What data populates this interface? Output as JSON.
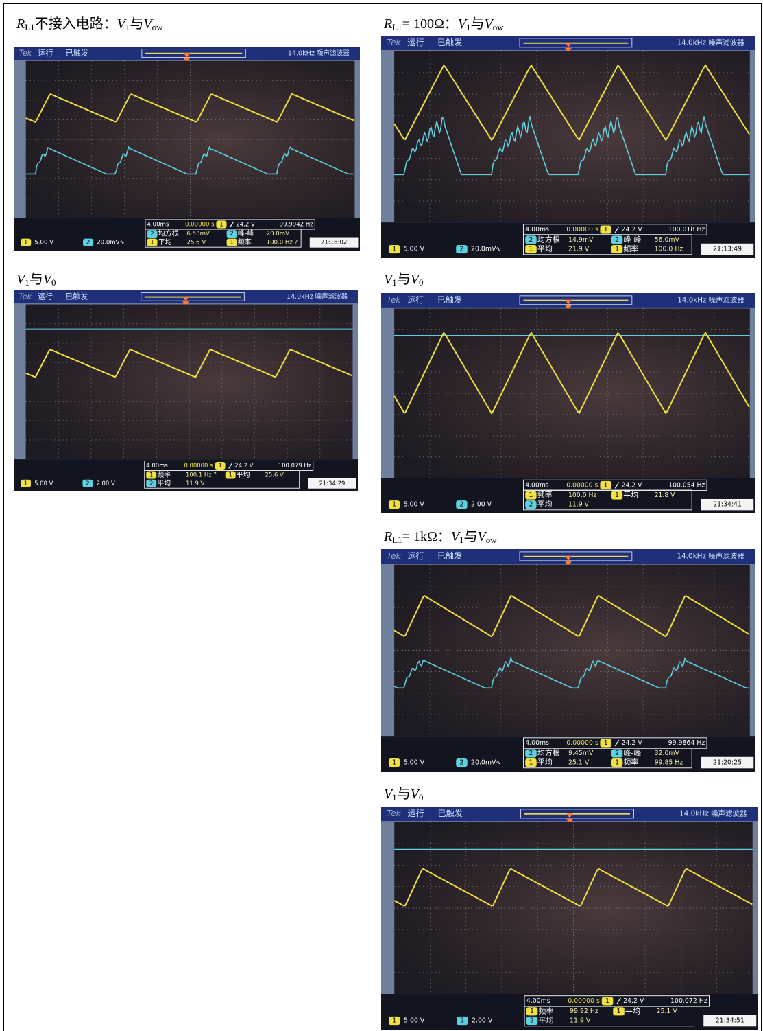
{
  "table": {
    "cells": [
      {
        "caption": [
          "R",
          "L1",
          "不接入电路：",
          "V",
          "1",
          "与",
          "V",
          "ow"
        ],
        "scope": {
          "brand": "Tek",
          "status": "运行",
          "trigger_state": "已触发",
          "filter": "14.0kHz 噪声滤波器",
          "timebase": "4.00ms",
          "delay": "0.00000 s",
          "trigger_ch": 1,
          "trigger_level": "24.2 V",
          "trigger_freq": "99.9942 Hz",
          "measurements": [
            {
              "ch": 2,
              "name": "均方根",
              "value": "6.53mV"
            },
            {
              "ch": 2,
              "name": "峰-峰",
              "value": "20.0mV"
            },
            {
              "ch": 1,
              "name": "平均",
              "value": "25.6 V"
            },
            {
              "ch": 1,
              "name": "频率",
              "value": "100.0 Hz ?"
            }
          ],
          "ch1": {
            "ch": 1,
            "scale": "5.00 V"
          },
          "ch2": {
            "ch": 2,
            "scale": "20.0mV∿"
          },
          "clock": "21:18:02"
        }
      },
      {
        "caption": [
          "V",
          "1",
          "与",
          "V",
          "0"
        ],
        "scope": {
          "brand": "Tek",
          "status": "运行",
          "trigger_state": "已触发",
          "filter": "14.0kHz 噪声滤波器",
          "timebase": "4.00ms",
          "delay": "0.00000 s",
          "trigger_ch": 1,
          "trigger_level": "24.2 V",
          "trigger_freq": "100.079 Hz",
          "measurements": [
            {
              "ch": 1,
              "name": "频率",
              "value": "100.1 Hz ?"
            },
            {
              "ch": 1,
              "name": "平均",
              "value": "25.6 V"
            },
            {
              "ch": 2,
              "name": "平均",
              "value": "11.9 V"
            }
          ],
          "ch1": {
            "ch": 1,
            "scale": "5.00 V"
          },
          "ch2": {
            "ch": 2,
            "scale": "2.00 V"
          },
          "clock": "21:34:29"
        }
      },
      {
        "caption": [
          "R",
          "L1",
          "= 100Ω：",
          "V",
          "1",
          "与",
          "V",
          "ow"
        ],
        "scope": {
          "brand": "Tek",
          "status": "运行",
          "trigger_state": "已触发",
          "filter": "14.0kHz 噪声滤波器",
          "timebase": "4.00ms",
          "delay": "0.00000 s",
          "trigger_ch": 1,
          "trigger_level": "24.2 V",
          "trigger_freq": "100.018 Hz",
          "measurements": [
            {
              "ch": 2,
              "name": "均方根",
              "value": "14.9mV"
            },
            {
              "ch": 2,
              "name": "峰-峰",
              "value": "56.0mV"
            },
            {
              "ch": 1,
              "name": "平均",
              "value": "21.9 V"
            },
            {
              "ch": 1,
              "name": "频率",
              "value": "100.0 Hz"
            }
          ],
          "ch1": {
            "ch": 1,
            "scale": "5.00 V"
          },
          "ch2": {
            "ch": 2,
            "scale": "20.0mV∿"
          },
          "clock": "21:13:49"
        }
      },
      {
        "caption": [
          "V",
          "1",
          "与",
          "V",
          "0"
        ],
        "scope": {
          "brand": "Tek",
          "status": "运行",
          "trigger_state": "已触发",
          "filter": "14.0kHz 噪声滤波器",
          "timebase": "4.00ms",
          "delay": "0.00000 s",
          "trigger_ch": 1,
          "trigger_level": "24.2 V",
          "trigger_freq": "100.054 Hz",
          "measurements": [
            {
              "ch": 1,
              "name": "频率",
              "value": "100.0 Hz"
            },
            {
              "ch": 1,
              "name": "平均",
              "value": "21.8 V"
            },
            {
              "ch": 2,
              "name": "平均",
              "value": "11.9 V"
            }
          ],
          "ch1": {
            "ch": 1,
            "scale": "5.00 V"
          },
          "ch2": {
            "ch": 2,
            "scale": "2.00 V"
          },
          "clock": "21:34:41"
        }
      },
      {
        "caption": [
          "R",
          "L1",
          "= 1kΩ：",
          "V",
          "1",
          "与",
          "V",
          "ow"
        ],
        "scope": {
          "brand": "Tek",
          "status": "运行",
          "trigger_state": "已触发",
          "filter": "14.0kHz 噪声滤波器",
          "timebase": "4.00ms",
          "delay": "0.00000 s",
          "trigger_ch": 1,
          "trigger_level": "24.2 V",
          "trigger_freq": "99.9864 Hz",
          "measurements": [
            {
              "ch": 2,
              "name": "均方根",
              "value": "9.45mV"
            },
            {
              "ch": 2,
              "name": "峰-峰",
              "value": "32.0mV"
            },
            {
              "ch": 1,
              "name": "平均",
              "value": "25.1 V"
            },
            {
              "ch": 1,
              "name": "频率",
              "value": "99.85 Hz"
            }
          ],
          "ch1": {
            "ch": 1,
            "scale": "5.00 V"
          },
          "ch2": {
            "ch": 2,
            "scale": "20.0mV∿"
          },
          "clock": "21:20:25"
        }
      },
      {
        "caption": [
          "V",
          "1",
          "与",
          "V",
          "0"
        ],
        "scope": {
          "brand": "Tek",
          "status": "运行",
          "trigger_state": "已触发",
          "filter": "14.0kHz 噪声滤波器",
          "timebase": "4.00ms",
          "delay": "0.00000 s",
          "trigger_ch": 1,
          "trigger_level": "24.2 V",
          "trigger_freq": "100.072 Hz",
          "measurements": [
            {
              "ch": 1,
              "name": "频率",
              "value": "99.92 Hz"
            },
            {
              "ch": 1,
              "name": "平均",
              "value": "25.1 V"
            },
            {
              "ch": 2,
              "name": "平均",
              "value": "11.9 V"
            }
          ],
          "ch1": {
            "ch": 1,
            "scale": "5.00 V"
          },
          "ch2": {
            "ch": 2,
            "scale": "2.00 V"
          },
          "clock": "21:34:51"
        }
      }
    ]
  }
}
